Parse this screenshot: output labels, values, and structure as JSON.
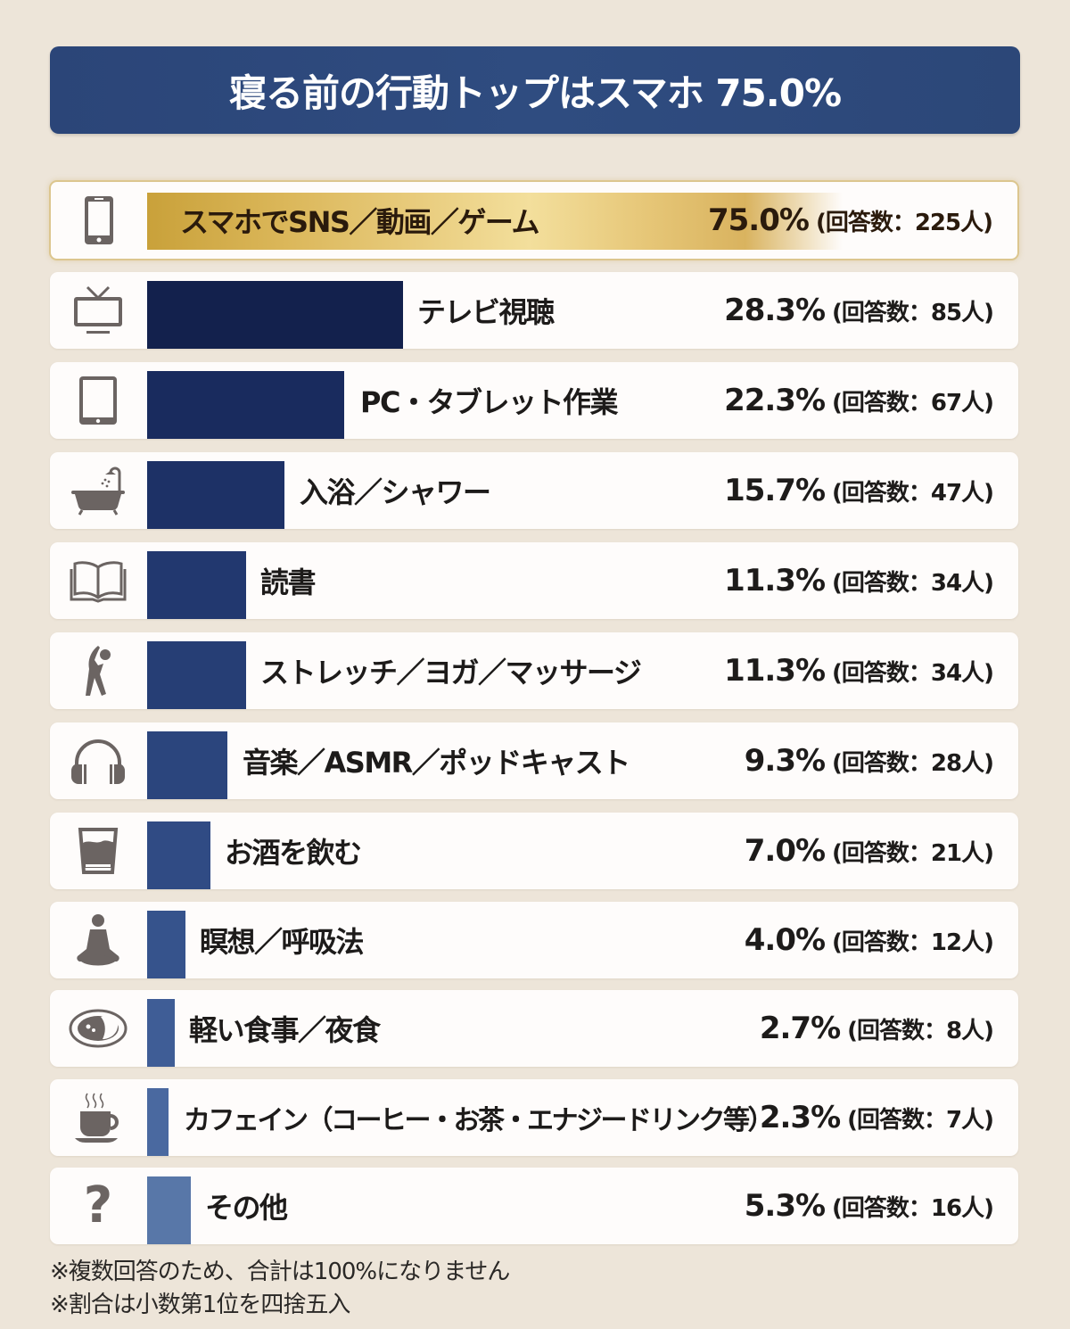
{
  "title": "寝る前の行動トップはスマホ 75.0%",
  "rows": [
    {
      "icon": "smartphone-icon",
      "label": "スマホでSNS／動画／ゲーム",
      "pct": "75.0%",
      "count": "(回答数：225人)",
      "value": 75.0,
      "n": 225,
      "color": "#c9a13a"
    },
    {
      "icon": "tv-icon",
      "label": "テレビ視聴",
      "pct": "28.3%",
      "count": "(回答数：85人)",
      "value": 28.3,
      "n": 85,
      "color": "#13214d"
    },
    {
      "icon": "tablet-icon",
      "label": "PC・タブレット作業",
      "pct": "22.3%",
      "count": "(回答数：67人)",
      "value": 22.3,
      "n": 67,
      "color": "#192b5e"
    },
    {
      "icon": "bathtub-icon",
      "label": "入浴／シャワー",
      "pct": "15.7%",
      "count": "(回答数：47人)",
      "value": 15.7,
      "n": 47,
      "color": "#1d3166"
    },
    {
      "icon": "book-icon",
      "label": "読書",
      "pct": "11.3%",
      "count": "(回答数：34人)",
      "value": 11.3,
      "n": 34,
      "color": "#22386f"
    },
    {
      "icon": "stretch-icon",
      "label": "ストレッチ／ヨガ／マッサージ",
      "pct": "11.3%",
      "count": "(回答数：34人)",
      "value": 11.3,
      "n": 34,
      "color": "#263e75"
    },
    {
      "icon": "headphones-icon",
      "label": "音楽／ASMR／ポッドキャスト",
      "pct": "9.3%",
      "count": "(回答数：28人)",
      "value": 9.3,
      "n": 28,
      "color": "#2b457d"
    },
    {
      "icon": "glass-icon",
      "label": "お酒を飲む",
      "pct": "7.0%",
      "count": "(回答数：21人)",
      "value": 7.0,
      "n": 21,
      "color": "#304b84"
    },
    {
      "icon": "meditation-icon",
      "label": "瞑想／呼吸法",
      "pct": "4.0%",
      "count": "(回答数：12人)",
      "value": 4.0,
      "n": 12,
      "color": "#36538c"
    },
    {
      "icon": "meal-icon",
      "label": "軽い食事／夜食",
      "pct": "2.7%",
      "count": "(回答数：8人)",
      "value": 2.7,
      "n": 8,
      "color": "#3f5d96"
    },
    {
      "icon": "coffee-icon",
      "label": "カフェイン（コーヒー・お茶・エナジードリンク等）",
      "pct": "2.3%",
      "count": "(回答数：7人)",
      "value": 2.3,
      "n": 7,
      "color": "#4a69a0"
    },
    {
      "icon": "question-icon",
      "label": "その他",
      "pct": "5.3%",
      "count": "(回答数：16人)",
      "value": 5.3,
      "n": 16,
      "color": "#5877a8"
    }
  ],
  "notes": [
    "※複数回答のため、合計は100%になりません",
    "※割合は小数第1位を四捨五入"
  ],
  "colors": {
    "background": "#ede5d9",
    "title_bar": "#2e4a7d",
    "gold": "#c9a13a",
    "icon": "#6b6462"
  },
  "chart_data": {
    "type": "bar",
    "orientation": "horizontal",
    "title": "寝る前の行動トップはスマホ 75.0%",
    "categories": [
      "スマホでSNS／動画／ゲーム",
      "テレビ視聴",
      "PC・タブレット作業",
      "入浴／シャワー",
      "読書",
      "ストレッチ／ヨガ／マッサージ",
      "音楽／ASMR／ポッドキャスト",
      "お酒を飲む",
      "瞑想／呼吸法",
      "軽い食事／夜食",
      "カフェイン（コーヒー・お茶・エナジードリンク等）",
      "その他"
    ],
    "series": [
      {
        "name": "割合(%)",
        "values": [
          75.0,
          28.3,
          22.3,
          15.7,
          11.3,
          11.3,
          9.3,
          7.0,
          4.0,
          2.7,
          2.3,
          5.3
        ]
      },
      {
        "name": "回答数(人)",
        "values": [
          225,
          85,
          67,
          47,
          34,
          34,
          28,
          21,
          12,
          8,
          7,
          16
        ]
      }
    ],
    "xlabel": "",
    "ylabel": "",
    "xlim": [
      0,
      100
    ],
    "grid": false,
    "legend": "none",
    "annotations": [
      "※複数回答のため、合計は100%になりません",
      "※割合は小数第1位を四捨五入"
    ]
  }
}
